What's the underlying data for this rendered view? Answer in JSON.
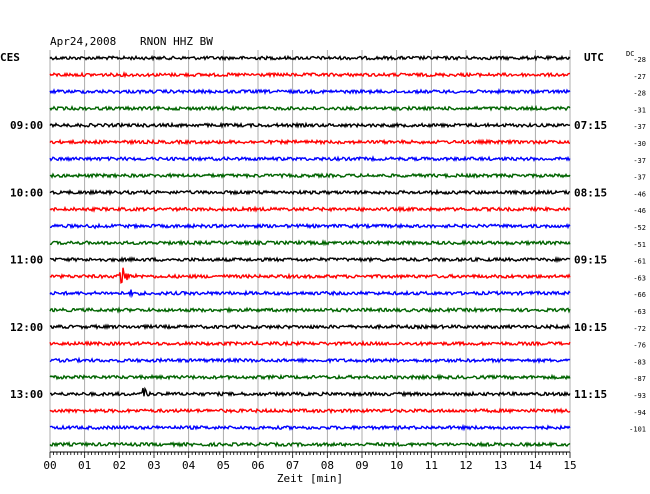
{
  "header": {
    "date": "Apr24,2008",
    "station": "RNON HHZ BW",
    "left_tz": "CES",
    "right_tz": "UTC",
    "dc_label": "DC"
  },
  "chart_data": {
    "type": "line",
    "title": "Apr24,2008   RNON HHZ BW",
    "xlabel": "Zeit [min]",
    "x_ticks": [
      "00",
      "01",
      "02",
      "03",
      "04",
      "05",
      "06",
      "07",
      "08",
      "09",
      "10",
      "11",
      "12",
      "13",
      "14",
      "15"
    ],
    "xlim": [
      0,
      15
    ],
    "grid": true,
    "trace_colors": [
      "#000000",
      "#ff0000",
      "#0000ff",
      "#006400"
    ],
    "trace_count": 24,
    "left_hour_labels": [
      {
        "trace": 4,
        "text": "09:00"
      },
      {
        "trace": 8,
        "text": "10:00"
      },
      {
        "trace": 12,
        "text": "11:00"
      },
      {
        "trace": 16,
        "text": "12:00"
      },
      {
        "trace": 20,
        "text": "13:00"
      }
    ],
    "right_hour_labels": [
      {
        "trace": 4,
        "text": "07:15"
      },
      {
        "trace": 8,
        "text": "08:15"
      },
      {
        "trace": 12,
        "text": "09:15"
      },
      {
        "trace": 16,
        "text": "10:15"
      },
      {
        "trace": 20,
        "text": "11:15"
      }
    ],
    "dc_offsets": [
      "-28",
      "-27",
      "-28",
      "-31",
      "-37",
      "-30",
      "-37",
      "-37",
      "-46",
      "-46",
      "-52",
      "-51",
      "-61",
      "-63",
      "-66",
      "-63",
      "-72",
      "-76",
      "-83",
      "-87",
      "-93",
      "-94",
      "-101"
    ],
    "events": [
      {
        "trace": 10,
        "minute": 1.3,
        "amplitude": 0.6
      },
      {
        "trace": 13,
        "minute": 2.0,
        "amplitude": 6.0
      },
      {
        "trace": 14,
        "minute": 2.3,
        "amplitude": 0.9
      },
      {
        "trace": 20,
        "minute": 2.7,
        "amplitude": 2.2
      }
    ]
  }
}
